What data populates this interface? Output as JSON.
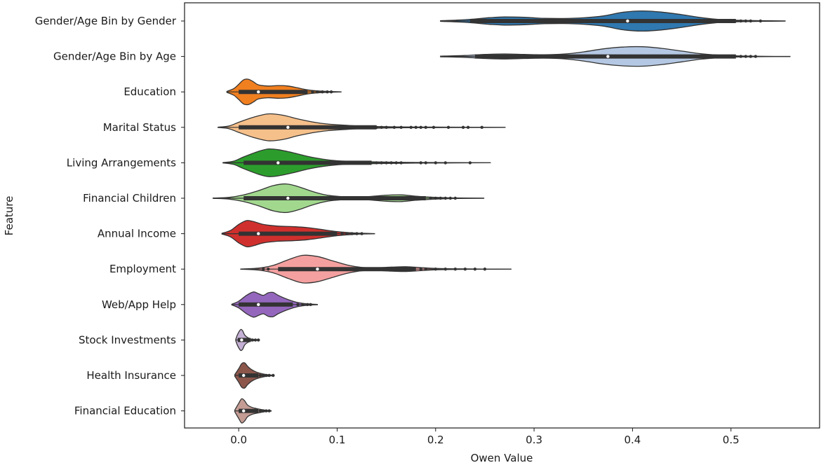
{
  "chart_data": {
    "type": "violin",
    "orientation": "horizontal",
    "xlabel": "Owen Value",
    "ylabel": "Feature",
    "xlim": [
      -0.055,
      0.59
    ],
    "xticks": [
      0.0,
      0.1,
      0.2,
      0.3,
      0.4,
      0.5
    ],
    "xtick_labels": [
      "0.0",
      "0.1",
      "0.2",
      "0.3",
      "0.4",
      "0.5"
    ],
    "grid": false,
    "series": [
      {
        "name": "Gender/Age Bin by Gender",
        "color": "#2f78b0",
        "min": 0.205,
        "max": 0.555,
        "q1": 0.265,
        "median": 0.395,
        "q3": 0.44,
        "box_min": 0.235,
        "box_max": 0.505,
        "density": [
          [
            0.205,
            0.02
          ],
          [
            0.23,
            0.08
          ],
          [
            0.255,
            0.2
          ],
          [
            0.27,
            0.24
          ],
          [
            0.29,
            0.22
          ],
          [
            0.31,
            0.16
          ],
          [
            0.33,
            0.15
          ],
          [
            0.35,
            0.19
          ],
          [
            0.37,
            0.3
          ],
          [
            0.39,
            0.52
          ],
          [
            0.41,
            0.6
          ],
          [
            0.43,
            0.53
          ],
          [
            0.45,
            0.38
          ],
          [
            0.47,
            0.2
          ],
          [
            0.49,
            0.08
          ],
          [
            0.51,
            0.04
          ],
          [
            0.53,
            0.02
          ],
          [
            0.555,
            0.005
          ]
        ],
        "outliers": [
          0.51,
          0.515,
          0.52,
          0.53
        ]
      },
      {
        "name": "Gender/Age Bin by Age",
        "color": "#b5c8e3",
        "min": 0.205,
        "max": 0.56,
        "q1": 0.27,
        "median": 0.375,
        "q3": 0.44,
        "box_min": 0.24,
        "box_max": 0.505,
        "density": [
          [
            0.205,
            0.02
          ],
          [
            0.23,
            0.06
          ],
          [
            0.25,
            0.12
          ],
          [
            0.27,
            0.15
          ],
          [
            0.29,
            0.12
          ],
          [
            0.31,
            0.1
          ],
          [
            0.33,
            0.14
          ],
          [
            0.35,
            0.27
          ],
          [
            0.37,
            0.45
          ],
          [
            0.39,
            0.56
          ],
          [
            0.41,
            0.58
          ],
          [
            0.43,
            0.48
          ],
          [
            0.45,
            0.32
          ],
          [
            0.47,
            0.16
          ],
          [
            0.49,
            0.07
          ],
          [
            0.51,
            0.03
          ],
          [
            0.535,
            0.01
          ],
          [
            0.56,
            0.003
          ]
        ],
        "outliers": [
          0.51,
          0.515,
          0.52,
          0.525
        ]
      },
      {
        "name": "Education",
        "color": "#f07f1f",
        "min": -0.012,
        "max": 0.104,
        "q1": 0.0,
        "median": 0.02,
        "q3": 0.05,
        "box_min": 0.0,
        "box_max": 0.07,
        "density": [
          [
            -0.012,
            0.03
          ],
          [
            -0.005,
            0.2
          ],
          [
            0.0,
            0.45
          ],
          [
            0.005,
            0.72
          ],
          [
            0.01,
            0.75
          ],
          [
            0.015,
            0.6
          ],
          [
            0.02,
            0.42
          ],
          [
            0.03,
            0.35
          ],
          [
            0.04,
            0.38
          ],
          [
            0.05,
            0.35
          ],
          [
            0.06,
            0.24
          ],
          [
            0.07,
            0.12
          ],
          [
            0.08,
            0.06
          ],
          [
            0.09,
            0.03
          ],
          [
            0.104,
            0.006
          ]
        ],
        "outliers": [
          0.075,
          0.08,
          0.085,
          0.09,
          0.094
        ]
      },
      {
        "name": "Marital Status",
        "color": "#f6c08b",
        "min": -0.021,
        "max": 0.271,
        "q1": 0.0,
        "median": 0.05,
        "q3": 0.12,
        "box_min": 0.0,
        "box_max": 0.14,
        "density": [
          [
            -0.021,
            0.01
          ],
          [
            -0.01,
            0.08
          ],
          [
            0.0,
            0.3
          ],
          [
            0.015,
            0.6
          ],
          [
            0.03,
            0.8
          ],
          [
            0.045,
            0.72
          ],
          [
            0.06,
            0.5
          ],
          [
            0.075,
            0.32
          ],
          [
            0.09,
            0.2
          ],
          [
            0.11,
            0.12
          ],
          [
            0.13,
            0.06
          ],
          [
            0.16,
            0.03
          ],
          [
            0.2,
            0.015
          ],
          [
            0.24,
            0.008
          ],
          [
            0.271,
            0.002
          ]
        ],
        "outliers": [
          0.14,
          0.145,
          0.15,
          0.158,
          0.165,
          0.175,
          0.18,
          0.185,
          0.19,
          0.198,
          0.213,
          0.228,
          0.233,
          0.247
        ]
      },
      {
        "name": "Living Arrangements",
        "color": "#2c9d2c",
        "min": -0.016,
        "max": 0.256,
        "q1": 0.005,
        "median": 0.04,
        "q3": 0.09,
        "box_min": 0.005,
        "box_max": 0.135,
        "density": [
          [
            -0.016,
            0.01
          ],
          [
            -0.005,
            0.1
          ],
          [
            0.005,
            0.35
          ],
          [
            0.02,
            0.68
          ],
          [
            0.03,
            0.82
          ],
          [
            0.04,
            0.78
          ],
          [
            0.055,
            0.6
          ],
          [
            0.07,
            0.38
          ],
          [
            0.085,
            0.22
          ],
          [
            0.1,
            0.12
          ],
          [
            0.12,
            0.07
          ],
          [
            0.15,
            0.04
          ],
          [
            0.18,
            0.02
          ],
          [
            0.22,
            0.008
          ],
          [
            0.256,
            0.002
          ]
        ],
        "outliers": [
          0.14,
          0.145,
          0.15,
          0.155,
          0.16,
          0.165,
          0.185,
          0.19,
          0.2,
          0.21,
          0.235
        ]
      },
      {
        "name": "Financial Children",
        "color": "#a1d88e",
        "min": -0.026,
        "max": 0.249,
        "q1": 0.005,
        "median": 0.05,
        "q3": 0.09,
        "box_min": 0.005,
        "box_max": 0.19,
        "density": [
          [
            -0.026,
            0.01
          ],
          [
            -0.01,
            0.05
          ],
          [
            0.005,
            0.2
          ],
          [
            0.02,
            0.45
          ],
          [
            0.035,
            0.75
          ],
          [
            0.048,
            0.85
          ],
          [
            0.06,
            0.7
          ],
          [
            0.075,
            0.4
          ],
          [
            0.09,
            0.18
          ],
          [
            0.11,
            0.08
          ],
          [
            0.13,
            0.09
          ],
          [
            0.15,
            0.18
          ],
          [
            0.165,
            0.2
          ],
          [
            0.18,
            0.12
          ],
          [
            0.2,
            0.05
          ],
          [
            0.225,
            0.015
          ],
          [
            0.249,
            0.003
          ]
        ],
        "outliers": [
          0.195,
          0.2,
          0.205,
          0.21,
          0.215,
          0.22
        ]
      },
      {
        "name": "Annual Income",
        "color": "#d0302d",
        "min": -0.017,
        "max": 0.138,
        "q1": 0.0,
        "median": 0.02,
        "q3": 0.08,
        "box_min": 0.0,
        "box_max": 0.1,
        "density": [
          [
            -0.017,
            0.02
          ],
          [
            -0.008,
            0.2
          ],
          [
            0.0,
            0.55
          ],
          [
            0.008,
            0.78
          ],
          [
            0.015,
            0.72
          ],
          [
            0.025,
            0.55
          ],
          [
            0.04,
            0.45
          ],
          [
            0.055,
            0.42
          ],
          [
            0.07,
            0.36
          ],
          [
            0.085,
            0.24
          ],
          [
            0.1,
            0.12
          ],
          [
            0.115,
            0.05
          ],
          [
            0.13,
            0.015
          ],
          [
            0.138,
            0.004
          ]
        ],
        "outliers": [
          0.105,
          0.11,
          0.115,
          0.12,
          0.125
        ]
      },
      {
        "name": "Employment",
        "color": "#f5a0a0",
        "min": 0.002,
        "max": 0.277,
        "q1": 0.04,
        "median": 0.08,
        "q3": 0.16,
        "box_min": 0.04,
        "box_max": 0.18,
        "density": [
          [
            0.002,
            0.005
          ],
          [
            0.02,
            0.06
          ],
          [
            0.035,
            0.22
          ],
          [
            0.05,
            0.55
          ],
          [
            0.065,
            0.82
          ],
          [
            0.08,
            0.75
          ],
          [
            0.095,
            0.5
          ],
          [
            0.11,
            0.25
          ],
          [
            0.125,
            0.1
          ],
          [
            0.14,
            0.08
          ],
          [
            0.155,
            0.12
          ],
          [
            0.17,
            0.14
          ],
          [
            0.185,
            0.09
          ],
          [
            0.2,
            0.04
          ],
          [
            0.225,
            0.015
          ],
          [
            0.25,
            0.006
          ],
          [
            0.277,
            0.002
          ]
        ],
        "outliers": [
          0.025,
          0.03,
          0.185,
          0.19,
          0.2,
          0.21,
          0.22,
          0.23,
          0.24,
          0.25
        ]
      },
      {
        "name": "Web/App Help",
        "color": "#9467bd",
        "min": -0.007,
        "max": 0.08,
        "q1": 0.0,
        "median": 0.02,
        "q3": 0.04,
        "box_min": 0.0,
        "box_max": 0.055,
        "density": [
          [
            -0.007,
            0.02
          ],
          [
            0.0,
            0.2
          ],
          [
            0.008,
            0.55
          ],
          [
            0.015,
            0.75
          ],
          [
            0.02,
            0.65
          ],
          [
            0.025,
            0.55
          ],
          [
            0.03,
            0.7
          ],
          [
            0.035,
            0.72
          ],
          [
            0.04,
            0.55
          ],
          [
            0.05,
            0.3
          ],
          [
            0.06,
            0.12
          ],
          [
            0.07,
            0.04
          ],
          [
            0.08,
            0.008
          ]
        ],
        "outliers": [
          0.06,
          0.065,
          0.07,
          0.073
        ]
      },
      {
        "name": "Stock Investments",
        "color": "#c5b0d5",
        "min": -0.003,
        "max": 0.021,
        "q1": -0.001,
        "median": 0.003,
        "q3": 0.008,
        "box_min": -0.001,
        "box_max": 0.012,
        "density": [
          [
            -0.003,
            0.04
          ],
          [
            -0.001,
            0.35
          ],
          [
            0.002,
            0.62
          ],
          [
            0.004,
            0.55
          ],
          [
            0.006,
            0.3
          ],
          [
            0.009,
            0.15
          ],
          [
            0.012,
            0.07
          ],
          [
            0.016,
            0.03
          ],
          [
            0.021,
            0.008
          ]
        ],
        "outliers": [
          0.014,
          0.017,
          0.02
        ]
      },
      {
        "name": "Health Insurance",
        "color": "#8c564b",
        "min": -0.004,
        "max": 0.036,
        "q1": 0.0,
        "median": 0.005,
        "q3": 0.015,
        "box_min": 0.0,
        "box_max": 0.02,
        "density": [
          [
            -0.004,
            0.05
          ],
          [
            0.0,
            0.4
          ],
          [
            0.003,
            0.7
          ],
          [
            0.006,
            0.75
          ],
          [
            0.009,
            0.55
          ],
          [
            0.013,
            0.35
          ],
          [
            0.018,
            0.2
          ],
          [
            0.024,
            0.1
          ],
          [
            0.03,
            0.04
          ],
          [
            0.036,
            0.01
          ]
        ],
        "outliers": [
          0.022,
          0.025,
          0.028,
          0.031,
          0.035
        ]
      },
      {
        "name": "Financial Education",
        "color": "#c49c94",
        "min": -0.004,
        "max": 0.033,
        "q1": 0.0,
        "median": 0.005,
        "q3": 0.015,
        "box_min": 0.0,
        "box_max": 0.02,
        "density": [
          [
            -0.004,
            0.05
          ],
          [
            0.0,
            0.45
          ],
          [
            0.003,
            0.72
          ],
          [
            0.006,
            0.6
          ],
          [
            0.009,
            0.35
          ],
          [
            0.013,
            0.22
          ],
          [
            0.018,
            0.14
          ],
          [
            0.024,
            0.07
          ],
          [
            0.03,
            0.02
          ],
          [
            0.033,
            0.008
          ]
        ],
        "outliers": [
          0.022,
          0.025,
          0.028,
          0.031
        ]
      }
    ]
  }
}
